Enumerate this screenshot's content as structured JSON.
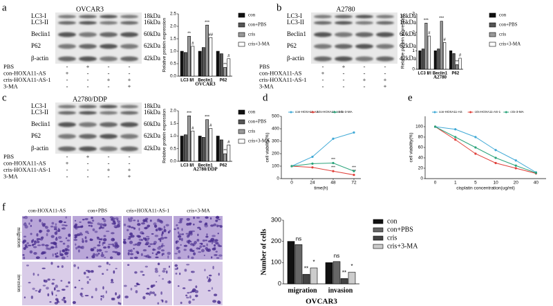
{
  "panel_labels": [
    "a",
    "b",
    "c",
    "d",
    "e",
    "f"
  ],
  "blots": [
    {
      "title": "OVCAR3",
      "bands": [
        "LC3-I",
        "LC3-II",
        "Beclin1",
        "P62",
        "β-actin"
      ],
      "sizes": [
        "18kDa",
        "16kDa",
        "60kDa",
        "62kDa",
        "42kDa"
      ],
      "treatments": [
        {
          "name": "PBS",
          "signs": [
            "-",
            "+",
            "-",
            "-"
          ]
        },
        {
          "name": "con-HOXA11-AS",
          "signs": [
            "+",
            "-",
            "-",
            "-"
          ]
        },
        {
          "name": "cris-HOXA11-AS-1",
          "signs": [
            "-",
            "-",
            "+",
            "+"
          ]
        },
        {
          "name": "3-MA",
          "signs": [
            "-",
            "-",
            "-",
            "+"
          ]
        }
      ]
    },
    {
      "title": "A2780",
      "bands": [
        "LC3-I",
        "LC3-II",
        "Beclin1",
        "P62",
        "β-actin"
      ],
      "sizes": [
        "18kDa",
        "16kDa",
        "60kDa",
        "62kDa",
        "42kDa"
      ],
      "treatments": [
        {
          "name": "PBS",
          "signs": [
            "-",
            "+",
            "-",
            "-"
          ]
        },
        {
          "name": "con-HOXA11-AS",
          "signs": [
            "+",
            "-",
            "-",
            "-"
          ]
        },
        {
          "name": "cris-HOXA11-AS-1",
          "signs": [
            "-",
            "-",
            "+",
            "+"
          ]
        },
        {
          "name": "3-MA",
          "signs": [
            "-",
            "-",
            "-",
            "+"
          ]
        }
      ]
    },
    {
      "title": "A2780/DDP",
      "bands": [
        "LC3-I",
        "LC3-II",
        "Beclin1",
        "P62",
        "β-actin"
      ],
      "sizes": [
        "18kDa",
        "16kDa",
        "60kDa",
        "62kDa",
        "42kDa"
      ],
      "treatments": [
        {
          "name": "PBS",
          "signs": [
            "-",
            "+",
            "-",
            "-"
          ]
        },
        {
          "name": "con-HOXA11-AS",
          "signs": [
            "+",
            "-",
            "-",
            "-"
          ]
        },
        {
          "name": "cris-HOXA11-AS-1",
          "signs": [
            "-",
            "-",
            "+",
            "+"
          ]
        },
        {
          "name": "3-MA",
          "signs": [
            "-",
            "-",
            "-",
            "+"
          ]
        }
      ]
    }
  ],
  "transwell": {
    "columns": [
      "con-HOXA11-AS",
      "con+PBS",
      "cris+HOXA11-AS-1",
      "cris+3-MA"
    ],
    "rows": [
      "migration",
      "invasion"
    ]
  },
  "chart_data": [
    {
      "type": "bar",
      "xlabel": "OVCAR3",
      "ylabel": "Relative protein expression",
      "legend": "right",
      "categories": [
        "LC3 Ⅱ/Ⅰ",
        "Beclin1",
        "P62"
      ],
      "ylim": [
        0,
        2.5
      ],
      "yticks": [
        {
          "value": 0,
          "label": "0.0"
        },
        {
          "value": 0.5,
          "label": "0.5"
        },
        {
          "value": 1,
          "label": "1.0"
        },
        {
          "value": 1.5,
          "label": "1.5"
        },
        {
          "value": 2,
          "label": "2.0"
        },
        {
          "value": 2.5,
          "label": "2.5"
        }
      ],
      "series": [
        {
          "name": "con",
          "color": "#111111",
          "values": [
            1.0,
            1.0,
            1.0
          ]
        },
        {
          "name": "con+PBS",
          "color": "#555555",
          "values": [
            0.95,
            1.15,
            0.9
          ]
        },
        {
          "name": "cris",
          "color": "#999999",
          "values": [
            1.6,
            2.05,
            0.35
          ],
          "significance": [
            "**",
            "***",
            "**"
          ]
        },
        {
          "name": "cris+3-MA",
          "color": "#ffffff",
          "values": [
            1.2,
            1.55,
            0.7
          ],
          "significance": [
            "#",
            "##",
            "#"
          ]
        }
      ]
    },
    {
      "type": "bar",
      "xlabel": "A2780",
      "ylabel": "Relative protein expression",
      "legend": "right",
      "categories": [
        "LC3 Ⅱ/Ⅰ",
        "Beclin1",
        "P62"
      ],
      "ylim": [
        0,
        3
      ],
      "yticks": [
        0,
        1,
        2,
        3
      ],
      "series": [
        {
          "name": "con",
          "color": "#111111",
          "values": [
            1.0,
            1.0,
            1.0
          ]
        },
        {
          "name": "con+PBS",
          "color": "#555555",
          "values": [
            1.1,
            1.1,
            0.85
          ]
        },
        {
          "name": "cris",
          "color": "#999999",
          "values": [
            2.5,
            2.6,
            0.25
          ],
          "significance": [
            "***",
            "***",
            "**"
          ]
        },
        {
          "name": "cris+3-MA",
          "color": "#ffffff",
          "values": [
            1.8,
            1.45,
            0.6
          ],
          "significance": [
            "#",
            "#",
            "#"
          ]
        }
      ]
    },
    {
      "type": "bar",
      "xlabel": "A2780/DDP",
      "ylabel": "Relative protein expression",
      "legend": "right",
      "categories": [
        "LC3 Ⅱ/Ⅰ",
        "Beclin1",
        "P62"
      ],
      "ylim": [
        0,
        2
      ],
      "yticks": [
        {
          "value": 0,
          "label": "0.0"
        },
        {
          "value": 0.5,
          "label": "0.5"
        },
        {
          "value": 1,
          "label": "1.0"
        },
        {
          "value": 1.5,
          "label": "1.5"
        },
        {
          "value": 2,
          "label": "2.0"
        }
      ],
      "series": [
        {
          "name": "con",
          "color": "#111111",
          "values": [
            1.0,
            1.0,
            1.0
          ]
        },
        {
          "name": "con+PBS",
          "color": "#555555",
          "values": [
            1.05,
            0.95,
            0.85
          ]
        },
        {
          "name": "cris",
          "color": "#999999",
          "values": [
            1.8,
            1.65,
            0.3
          ],
          "significance": [
            "***",
            "***",
            "**"
          ]
        },
        {
          "name": "cris+3-MA",
          "color": "#ffffff",
          "values": [
            1.2,
            1.3,
            0.65
          ],
          "significance": [
            "#",
            "#",
            "#"
          ]
        }
      ]
    },
    {
      "type": "line",
      "xlabel": "time(h)",
      "ylabel": "cell viability(%)",
      "legend": "top",
      "x": [
        0,
        24,
        48,
        72
      ],
      "xlim": [
        -12,
        80
      ],
      "xticks": [
        0,
        24,
        48,
        72
      ],
      "ylim": [
        0,
        500
      ],
      "yticks": [
        0,
        100,
        200,
        300,
        400,
        500
      ],
      "series": [
        {
          "name": "con-HOXA11-AS",
          "color": "#3fa9d6",
          "values": [
            100,
            175,
            320,
            370
          ]
        },
        {
          "name": "cris-HOXA11-AS-1",
          "color": "#e0403a",
          "values": [
            100,
            90,
            60,
            30
          ],
          "significance": [
            null,
            null,
            "***",
            "***"
          ]
        },
        {
          "name": "cris-3-MA",
          "color": "#2aa37a",
          "values": [
            100,
            120,
            125,
            60
          ],
          "significance": [
            null,
            null,
            "***",
            "***"
          ]
        }
      ]
    },
    {
      "type": "line",
      "xlabel": "cisplatin concentration(ug/ml)",
      "ylabel": "cell viability(%)",
      "legend": "top",
      "categories": [
        "0",
        "1",
        "5",
        "10",
        "20",
        "40"
      ],
      "ylim": [
        0,
        120
      ],
      "yticks": [
        0,
        20,
        40,
        60,
        80,
        100
      ],
      "series": [
        {
          "name": "con-HOXA11-AS",
          "color": "#3fa9d6",
          "values": [
            100,
            95,
            80,
            55,
            35,
            12
          ]
        },
        {
          "name": "cris-HOXA11-AS-1",
          "color": "#e0403a",
          "values": [
            100,
            75,
            48,
            30,
            20,
            10
          ]
        },
        {
          "name": "cris-3-MA",
          "color": "#2aa37a",
          "values": [
            100,
            80,
            60,
            40,
            25,
            11
          ]
        }
      ]
    },
    {
      "type": "bar",
      "xlabel": "OVCAR3",
      "ylabel": "Number of cells",
      "legend": "right",
      "categories": [
        "migration",
        "invasion"
      ],
      "ylim": [
        0,
        300
      ],
      "yticks": [
        0,
        100,
        200,
        300
      ],
      "series": [
        {
          "name": "con",
          "color": "#111111",
          "values": [
            200,
            100
          ]
        },
        {
          "name": "con+PBS",
          "color": "#666666",
          "values": [
            185,
            105
          ],
          "significance": [
            "ns",
            "ns"
          ]
        },
        {
          "name": "cris",
          "color": "#444444",
          "values": [
            45,
            25
          ],
          "significance": [
            "**",
            "**"
          ]
        },
        {
          "name": "cris+3-MA",
          "color": "#cccccc",
          "values": [
            75,
            55
          ],
          "significance": [
            "*",
            "*"
          ]
        }
      ]
    }
  ]
}
